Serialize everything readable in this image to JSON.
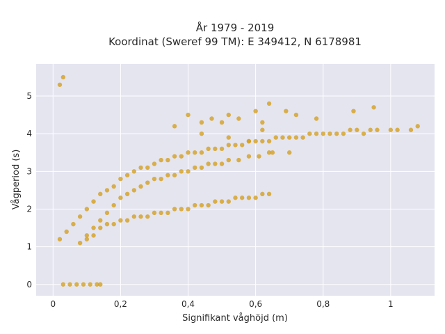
{
  "chart_data": {
    "type": "scatter",
    "title_line1": "År 1979 - 2019",
    "title_line2": "Koordinat (Sweref 99 TM): E 349412, N 6178981",
    "xlabel": "Signifikant våghöjd (m)",
    "ylabel": "Vågperiod (s)",
    "xlim": [
      -0.05,
      1.13
    ],
    "ylim": [
      -0.3,
      5.85
    ],
    "x_ticks": [
      0,
      0.2,
      0.4,
      0.6,
      0.8,
      1
    ],
    "x_tick_labels": [
      "0",
      "0,2",
      "0,4",
      "0,6",
      "0,8",
      "1"
    ],
    "y_ticks": [
      0,
      1,
      2,
      3,
      4,
      5
    ],
    "y_tick_labels": [
      "0",
      "1",
      "2",
      "3",
      "4",
      "5"
    ],
    "grid": true,
    "point_color": "#d4a020",
    "plot_background": "#e5e5f0",
    "series": [
      {
        "name": "",
        "x": [
          0.02,
          0.03,
          0.03,
          0.05,
          0.07,
          0.09,
          0.11,
          0.13,
          0.14,
          0.02,
          0.04,
          0.06,
          0.08,
          0.1,
          0.12,
          0.14,
          0.16,
          0.18,
          0.2,
          0.22,
          0.24,
          0.26,
          0.28,
          0.3,
          0.32,
          0.34,
          0.36,
          0.38,
          0.4,
          0.42,
          0.44,
          0.46,
          0.48,
          0.5,
          0.52,
          0.54,
          0.56,
          0.58,
          0.6,
          0.62,
          0.64,
          0.66,
          0.68,
          0.7,
          0.72,
          0.74,
          0.76,
          0.78,
          0.8,
          0.82,
          0.84,
          0.86,
          0.88,
          0.9,
          0.92,
          0.94,
          0.96,
          1.0,
          1.02,
          1.06,
          1.08,
          0.1,
          0.12,
          0.14,
          0.16,
          0.18,
          0.2,
          0.22,
          0.24,
          0.26,
          0.28,
          0.3,
          0.32,
          0.34,
          0.36,
          0.38,
          0.4,
          0.42,
          0.44,
          0.46,
          0.48,
          0.5,
          0.52,
          0.54,
          0.56,
          0.58,
          0.6,
          0.62,
          0.64,
          0.08,
          0.1,
          0.12,
          0.14,
          0.16,
          0.18,
          0.2,
          0.22,
          0.24,
          0.26,
          0.28,
          0.3,
          0.32,
          0.34,
          0.36,
          0.38,
          0.4,
          0.42,
          0.44,
          0.46,
          0.48,
          0.5,
          0.52,
          0.55,
          0.58,
          0.61,
          0.64,
          0.65,
          0.7,
          0.36,
          0.4,
          0.44,
          0.47,
          0.5,
          0.52,
          0.55,
          0.6,
          0.62,
          0.64,
          0.69,
          0.72,
          0.78,
          0.89,
          0.95,
          0.44,
          0.52,
          0.58,
          0.62
        ],
        "y": [
          5.3,
          5.5,
          0,
          0,
          0,
          0,
          0,
          0,
          0,
          1.2,
          1.4,
          1.6,
          1.8,
          2.0,
          2.2,
          2.4,
          2.5,
          2.6,
          2.8,
          2.9,
          3.0,
          3.1,
          3.1,
          3.2,
          3.3,
          3.3,
          3.4,
          3.4,
          3.5,
          3.5,
          3.5,
          3.6,
          3.6,
          3.6,
          3.7,
          3.7,
          3.7,
          3.8,
          3.8,
          3.8,
          3.8,
          3.9,
          3.9,
          3.9,
          3.9,
          3.9,
          4.0,
          4.0,
          4.0,
          4.0,
          4.0,
          4.0,
          4.1,
          4.1,
          4.0,
          4.1,
          4.1,
          4.1,
          4.1,
          4.1,
          4.2,
          1.2,
          1.3,
          1.5,
          1.6,
          1.6,
          1.7,
          1.7,
          1.8,
          1.8,
          1.8,
          1.9,
          1.9,
          1.9,
          2.0,
          2.0,
          2.0,
          2.1,
          2.1,
          2.1,
          2.2,
          2.2,
          2.2,
          2.3,
          2.3,
          2.3,
          2.3,
          2.4,
          2.4,
          1.1,
          1.3,
          1.5,
          1.7,
          1.9,
          2.1,
          2.3,
          2.4,
          2.5,
          2.6,
          2.7,
          2.8,
          2.8,
          2.9,
          2.9,
          3.0,
          3.0,
          3.1,
          3.1,
          3.2,
          3.2,
          3.2,
          3.3,
          3.3,
          3.4,
          3.4,
          3.5,
          3.5,
          3.5,
          4.2,
          4.5,
          4.3,
          4.4,
          4.3,
          4.5,
          4.4,
          4.6,
          4.3,
          4.8,
          4.6,
          4.5,
          4.4,
          4.6,
          4.7,
          4.0,
          3.9,
          3.8,
          4.1
        ]
      }
    ]
  }
}
